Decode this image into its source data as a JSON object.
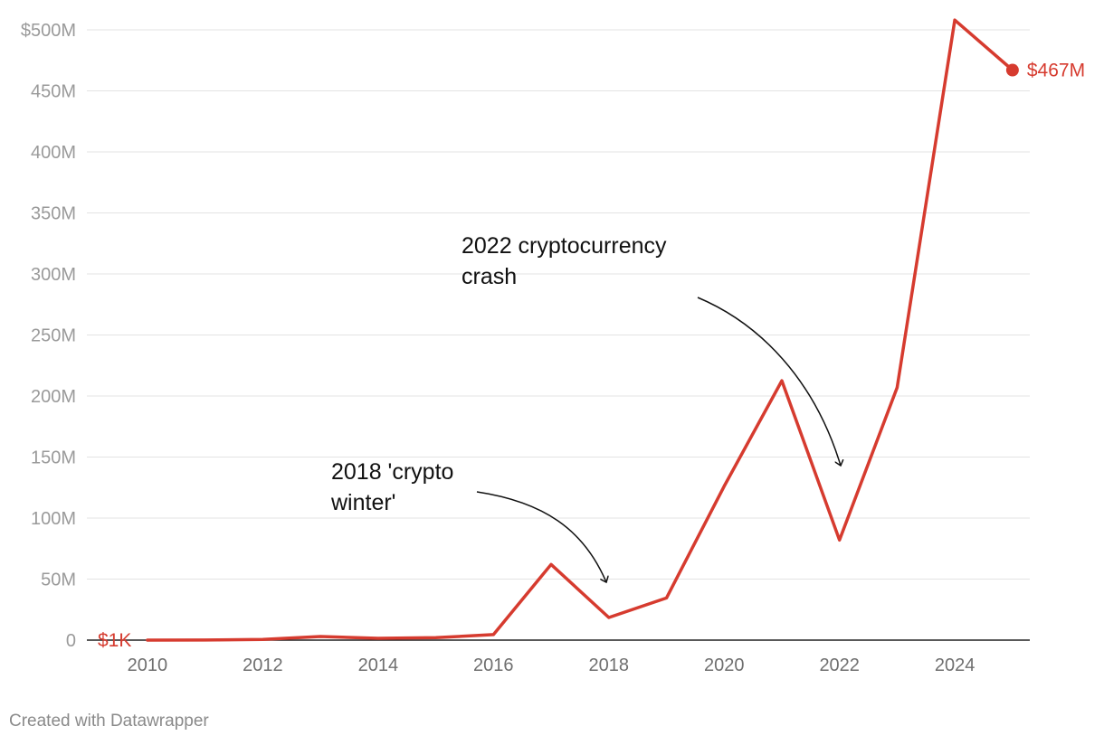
{
  "chart_data": {
    "type": "line",
    "x": [
      2010,
      2011,
      2012,
      2013,
      2014,
      2015,
      2016,
      2017,
      2018,
      2019,
      2020,
      2021,
      2022,
      2023,
      2024,
      2025
    ],
    "series": [
      {
        "values": [
          0.001,
          0.1,
          0.5,
          3,
          1.5,
          2,
          4.5,
          62,
          18.5,
          34.5,
          126,
          212.5,
          82,
          207,
          508,
          467
        ],
        "color": "#d63b2f"
      }
    ],
    "y_unit": "millions USD",
    "xlim": [
      2008.95,
      2025.3
    ],
    "ylim": [
      0,
      500
    ],
    "x_ticks": [
      2010,
      2012,
      2014,
      2016,
      2018,
      2020,
      2022,
      2024
    ],
    "y_ticks": [
      {
        "value": 0,
        "label": "0"
      },
      {
        "value": 50,
        "label": "50M"
      },
      {
        "value": 100,
        "label": "100M"
      },
      {
        "value": 150,
        "label": "150M"
      },
      {
        "value": 200,
        "label": "200M"
      },
      {
        "value": 250,
        "label": "250M"
      },
      {
        "value": 300,
        "label": "300M"
      },
      {
        "value": 350,
        "label": "350M"
      },
      {
        "value": 400,
        "label": "400M"
      },
      {
        "value": 450,
        "label": "450M"
      },
      {
        "value": 500,
        "label": "$500M"
      }
    ],
    "start_label": "$1K",
    "end_label": "$467M",
    "grid": true,
    "annotations": [
      {
        "lines": [
          "2018 'crypto",
          "winter'"
        ],
        "target_x": 2018
      },
      {
        "lines": [
          "2022 cryptocurrency",
          "crash"
        ],
        "target_x": 2022
      }
    ]
  },
  "credit": "Created with Datawrapper"
}
